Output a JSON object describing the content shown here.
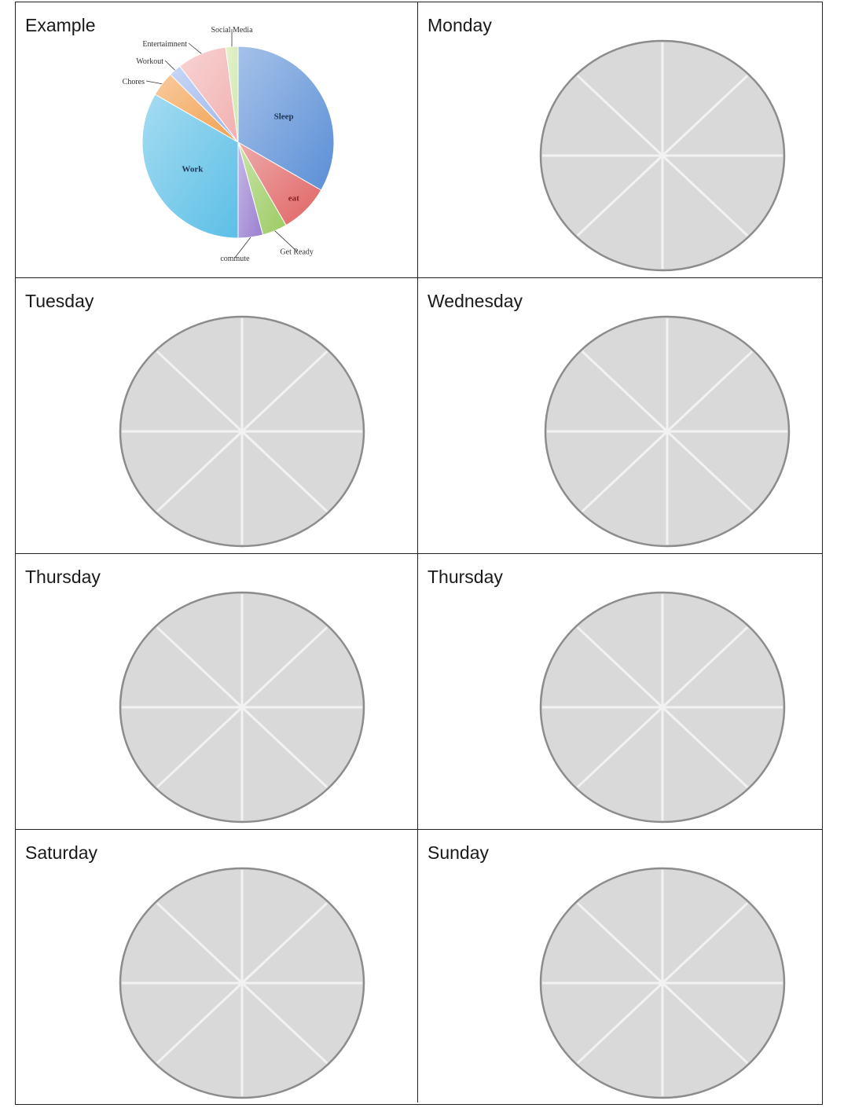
{
  "cells": [
    {
      "label": "Example"
    },
    {
      "label": "Monday"
    },
    {
      "label": "Tuesday"
    },
    {
      "label": "Wednesday"
    },
    {
      "label": "Thursday"
    },
    {
      "label": "Thursday"
    },
    {
      "label": "Saturday"
    },
    {
      "label": "Sunday"
    }
  ],
  "chart_data": {
    "type": "pie",
    "title": "",
    "categories": [
      "Sleep",
      "eat",
      "Get Ready",
      "commute",
      "Work",
      "Chores",
      "Workout",
      "Entertaimnent",
      "Social Media"
    ],
    "values": [
      8.0,
      2.0,
      1.0,
      1.0,
      8.0,
      1.0,
      0.5,
      2.0,
      0.5
    ],
    "colors": [
      "#5b8fd6",
      "#e06464",
      "#9ccc63",
      "#9a7fd0",
      "#5cbfe6",
      "#f2a04f",
      "#9bb5ec",
      "#f2b0b0",
      "#cfe8a8"
    ],
    "labels_inside": [
      "Sleep",
      "eat",
      "Work"
    ],
    "labels_outside": [
      "Get Ready",
      "commute",
      "Chores",
      "Workout",
      "Entertaimnent",
      "Social Media"
    ]
  },
  "wheel": {
    "slices": 8,
    "fill": "#d9d9d9",
    "stroke": "#8c8c8c",
    "divider": "#f2f2f2"
  }
}
